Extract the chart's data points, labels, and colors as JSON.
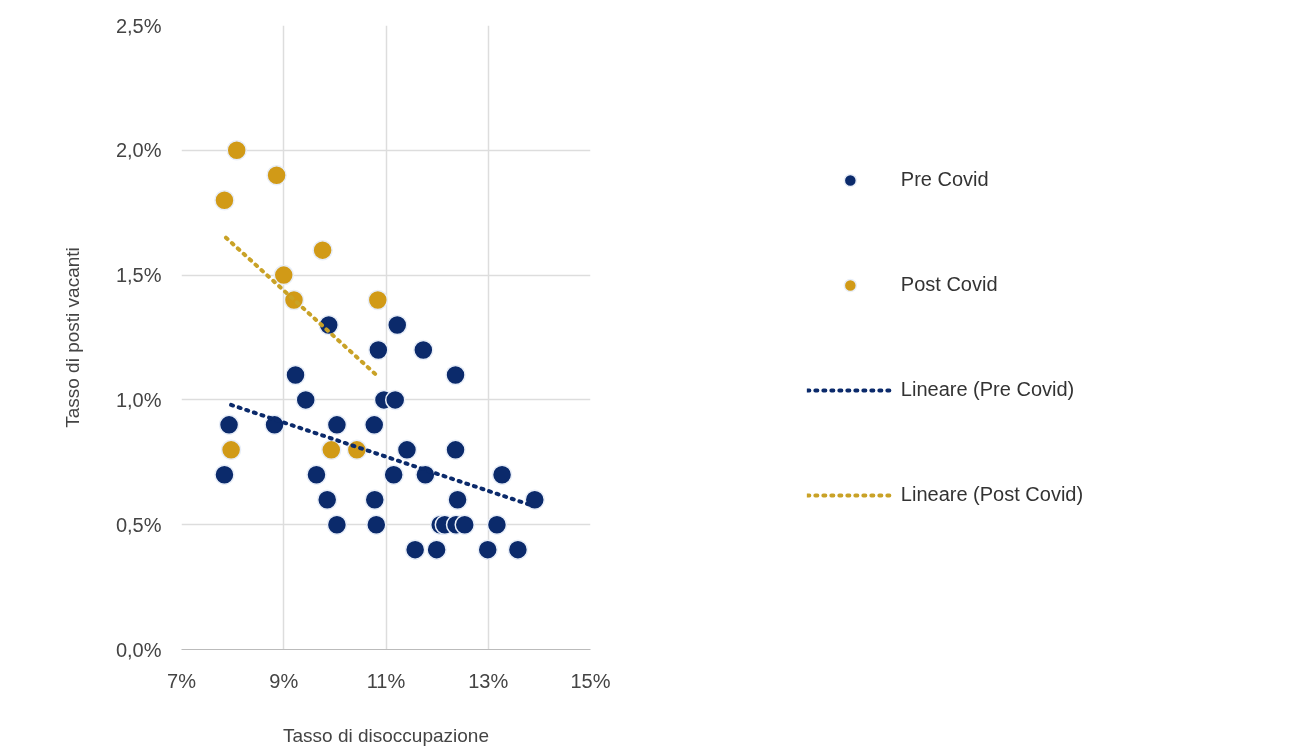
{
  "chart_data": {
    "type": "scatter",
    "xlabel": "Tasso di disoccupazione",
    "ylabel": "Tasso di posti vacanti",
    "xlim": [
      7,
      15
    ],
    "ylim": [
      0,
      2.5
    ],
    "xticks": [
      {
        "value": 7,
        "label": "7%"
      },
      {
        "value": 9,
        "label": "9%"
      },
      {
        "value": 11,
        "label": "11%"
      },
      {
        "value": 13,
        "label": "13%"
      },
      {
        "value": 15,
        "label": "15%"
      }
    ],
    "yticks": [
      {
        "value": 0,
        "label": "0,0%"
      },
      {
        "value": 0.5,
        "label": "0,5%"
      },
      {
        "value": 1.0,
        "label": "1,0%"
      },
      {
        "value": 1.5,
        "label": "1,5%"
      },
      {
        "value": 2.0,
        "label": "2,0%"
      },
      {
        "value": 2.5,
        "label": "2,5%"
      }
    ],
    "grid": true,
    "legend": "right",
    "marker": "circle",
    "series": [
      {
        "name": "Pre Covid",
        "color": "#0b2a6b",
        "x": [
          7.84,
          7.93,
          8.82,
          9.23,
          9.43,
          9.64,
          9.85,
          9.88,
          10.04,
          10.04,
          10.77,
          10.78,
          10.81,
          10.85,
          10.96,
          11.15,
          11.18,
          11.22,
          11.41,
          11.57,
          11.73,
          11.77,
          11.99,
          12.06,
          12.15,
          12.36,
          12.36,
          12.4,
          12.37,
          12.54,
          12.99,
          13.17,
          13.27,
          13.58,
          13.91
        ],
        "values": [
          0.7,
          0.9,
          0.9,
          1.1,
          1.0,
          0.7,
          0.6,
          1.3,
          0.9,
          0.5,
          0.9,
          0.6,
          0.5,
          1.2,
          1.0,
          0.7,
          1.0,
          1.3,
          0.8,
          0.4,
          1.2,
          0.7,
          0.4,
          0.5,
          0.5,
          1.1,
          0.8,
          0.6,
          0.5,
          0.5,
          0.4,
          0.5,
          0.7,
          0.4,
          0.6
        ]
      },
      {
        "name": "Post Covid",
        "color": "#d19a17",
        "x": [
          7.84,
          8.08,
          8.86,
          9.0,
          9.2,
          9.76,
          10.84,
          7.97,
          9.93,
          10.43
        ],
        "values": [
          1.8,
          2.0,
          1.9,
          1.5,
          1.4,
          1.6,
          1.4,
          0.8,
          0.8,
          0.8
        ]
      },
      {
        "name": "Lineare (Pre Covid)",
        "type": "line",
        "line_style": "dotted",
        "marker": "none",
        "color": "#0b2a6b",
        "x": [
          7.97,
          13.81
        ],
        "values": [
          0.98,
          0.58
        ]
      },
      {
        "name": "Lineare (Post Covid)",
        "type": "line",
        "line_style": "dotted",
        "marker": "none",
        "color": "#c9a227",
        "x": [
          7.87,
          10.81
        ],
        "values": [
          1.65,
          1.1
        ]
      }
    ]
  }
}
